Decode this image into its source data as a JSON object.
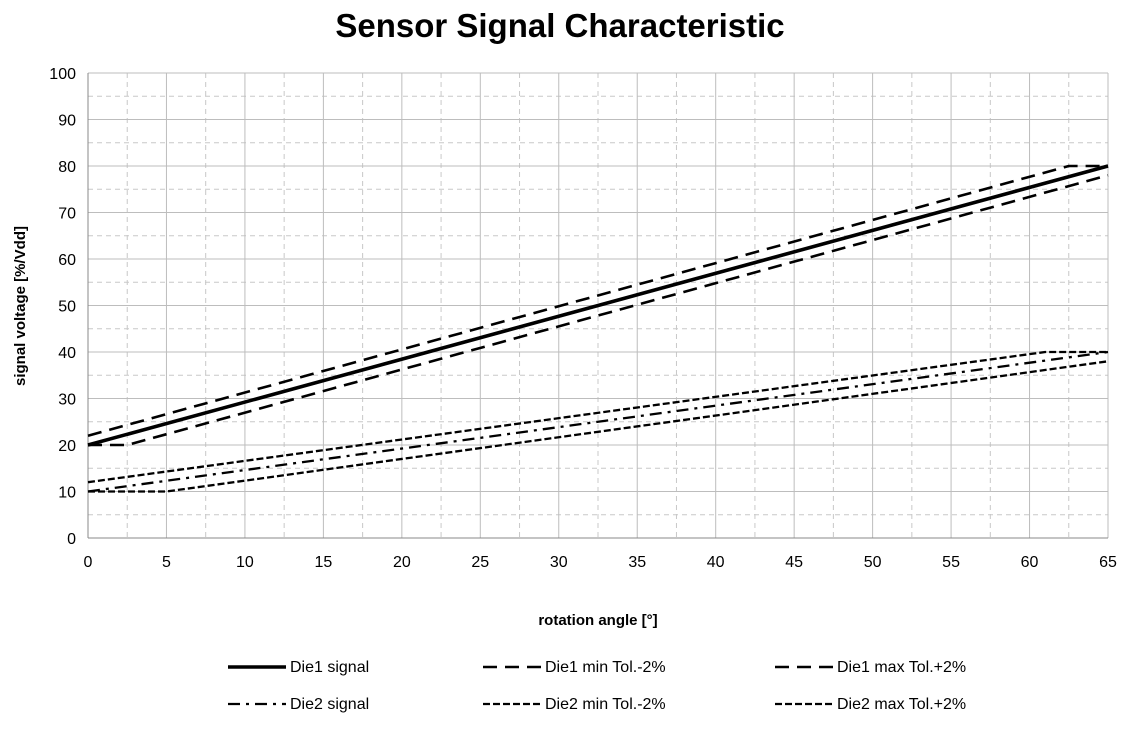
{
  "chart_data": {
    "type": "line",
    "title": "Sensor Signal Characteristic",
    "xlabel": "rotation angle [°]",
    "ylabel": "signal voltage [%/Vdd]",
    "xlim": [
      0,
      65
    ],
    "ylim": [
      0,
      100
    ],
    "x_ticks": [
      0,
      5,
      10,
      15,
      20,
      25,
      30,
      35,
      40,
      45,
      50,
      55,
      60,
      65
    ],
    "y_ticks": [
      0,
      10,
      20,
      30,
      40,
      50,
      60,
      70,
      80,
      90,
      100
    ],
    "grid": true,
    "legend_position": "bottom",
    "series": [
      {
        "name": "Die1 signal",
        "color": "#000000",
        "style": "solid",
        "x": [
          0,
          65
        ],
        "y": [
          20,
          80
        ]
      },
      {
        "name": "Die1 min Tol.-2%",
        "color": "#000000",
        "style": "dash",
        "x": [
          0,
          2.5,
          65
        ],
        "y": [
          20,
          20,
          78
        ]
      },
      {
        "name": "Die1 max Tol.+2%",
        "color": "#000000",
        "style": "dash",
        "x": [
          0,
          62.5,
          65
        ],
        "y": [
          22,
          80,
          80
        ]
      },
      {
        "name": "Die2 signal",
        "color": "#000000",
        "style": "dashdot",
        "x": [
          0,
          65
        ],
        "y": [
          10,
          40
        ]
      },
      {
        "name": "Die2 min Tol.-2%",
        "color": "#000000",
        "style": "shortdash",
        "x": [
          0,
          5,
          65
        ],
        "y": [
          10,
          10,
          38
        ]
      },
      {
        "name": "Die2 max Tol.+2%",
        "color": "#000000",
        "style": "shortdash",
        "x": [
          0,
          61,
          65
        ],
        "y": [
          12,
          40,
          40
        ]
      }
    ]
  }
}
